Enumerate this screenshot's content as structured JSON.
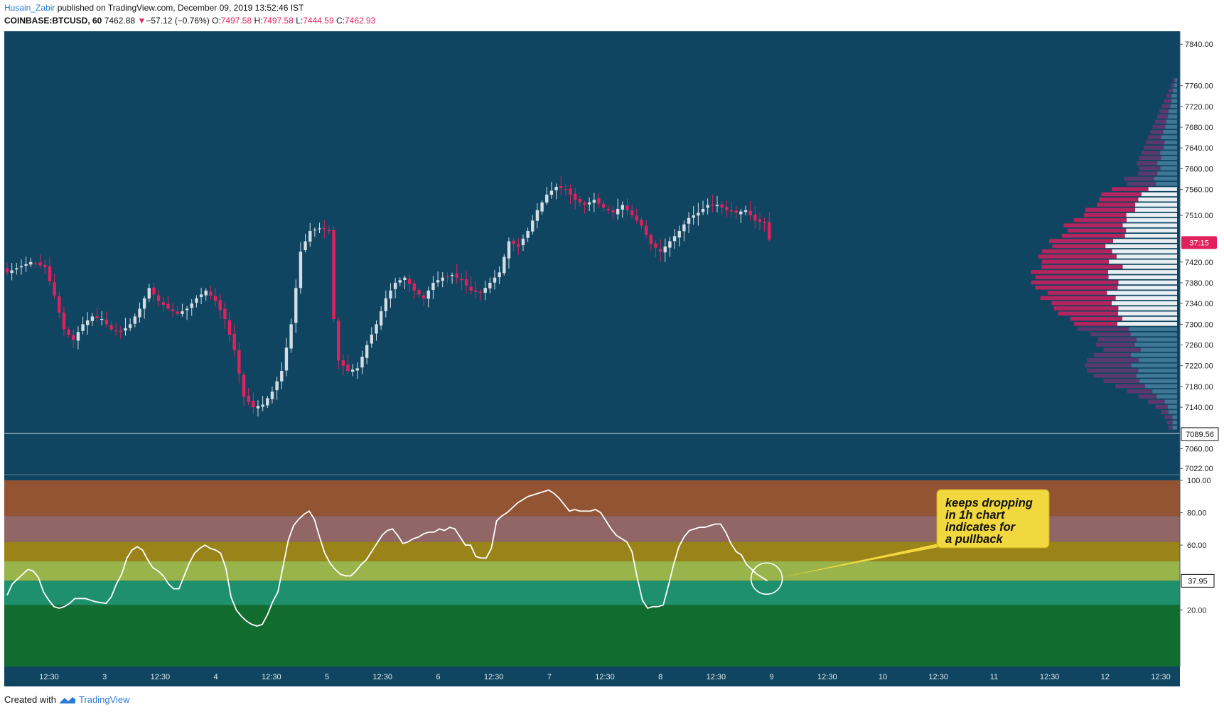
{
  "header": {
    "author": "Husain_Zabir",
    "published_text": "published on TradingView.com, December 09, 2019 13:52:46 IST",
    "symbol": "COINBASE:BTCUSD, 60",
    "last": "7462.88",
    "change_arrow": "▼",
    "change": "−57.12 (−0.76%)",
    "o_label": "O:",
    "o": "7497.58",
    "h_label": "H:",
    "h": "7497.58",
    "l_label": "L:",
    "l": "7444.59",
    "c_label": "C:",
    "c": "7462.93"
  },
  "footer": {
    "created_with": "Created with",
    "brand": "TradingView"
  },
  "colors": {
    "background": "#0f4560",
    "up_candle": "#d5dde4",
    "down_candle": "#e0215d",
    "bands": [
      "#935433",
      "#906666",
      "#9a8419",
      "#99b44a",
      "#1f906c",
      "#136c2f"
    ],
    "annotation_fill": "#f1d83e"
  },
  "chart_data": [
    {
      "type": "candlestick",
      "symbol": "COINBASE:BTCUSD",
      "interval": "60",
      "ylim": [
        7010,
        7865
      ],
      "y_ticks": [
        "7840.00",
        "7760.00",
        "7720.00",
        "7680.00",
        "7640.00",
        "7600.00",
        "7560.00",
        "7510.00",
        "7420.00",
        "7380.00",
        "7340.00",
        "7300.00",
        "7260.00",
        "7220.00",
        "7180.00",
        "7140.00",
        "7060.00",
        "7022.00"
      ],
      "x_ticks": [
        "12:30",
        "3",
        "12:30",
        "4",
        "12:30",
        "5",
        "12:30",
        "6",
        "12:30",
        "7",
        "12:30",
        "8",
        "12:30",
        "9",
        "12:30",
        "10",
        "12:30",
        "11",
        "12:30",
        "12",
        "12:30"
      ],
      "countdown_label": "37:15",
      "horizontal_line": {
        "value": 7089.56,
        "label": "7089.56"
      },
      "path_points": [
        [
          0,
          7400
        ],
        [
          5,
          7420
        ],
        [
          8,
          7410
        ],
        [
          10,
          7355
        ],
        [
          12,
          7290
        ],
        [
          14,
          7270
        ],
        [
          16,
          7300
        ],
        [
          18,
          7315
        ],
        [
          20,
          7310
        ],
        [
          22,
          7290
        ],
        [
          24,
          7285
        ],
        [
          26,
          7300
        ],
        [
          28,
          7330
        ],
        [
          30,
          7370
        ],
        [
          32,
          7345
        ],
        [
          34,
          7330
        ],
        [
          36,
          7320
        ],
        [
          38,
          7330
        ],
        [
          40,
          7350
        ],
        [
          42,
          7365
        ],
        [
          44,
          7345
        ],
        [
          46,
          7310
        ],
        [
          48,
          7250
        ],
        [
          50,
          7160
        ],
        [
          52,
          7140
        ],
        [
          54,
          7145
        ],
        [
          56,
          7170
        ],
        [
          58,
          7210
        ],
        [
          60,
          7300
        ],
        [
          62,
          7440
        ],
        [
          64,
          7480
        ],
        [
          66,
          7485
        ],
        [
          68,
          7480
        ],
        [
          69,
          7310
        ],
        [
          70,
          7230
        ],
        [
          72,
          7210
        ],
        [
          74,
          7215
        ],
        [
          76,
          7260
        ],
        [
          78,
          7300
        ],
        [
          80,
          7350
        ],
        [
          82,
          7380
        ],
        [
          84,
          7390
        ],
        [
          86,
          7365
        ],
        [
          88,
          7350
        ],
        [
          90,
          7380
        ],
        [
          92,
          7390
        ],
        [
          94,
          7395
        ],
        [
          96,
          7385
        ],
        [
          98,
          7365
        ],
        [
          100,
          7360
        ],
        [
          102,
          7380
        ],
        [
          104,
          7400
        ],
        [
          106,
          7460
        ],
        [
          108,
          7450
        ],
        [
          110,
          7480
        ],
        [
          112,
          7520
        ],
        [
          114,
          7550
        ],
        [
          116,
          7565
        ],
        [
          118,
          7560
        ],
        [
          120,
          7540
        ],
        [
          122,
          7530
        ],
        [
          124,
          7540
        ],
        [
          126,
          7525
        ],
        [
          128,
          7515
        ],
        [
          130,
          7530
        ],
        [
          132,
          7510
        ],
        [
          134,
          7490
        ],
        [
          136,
          7455
        ],
        [
          138,
          7440
        ],
        [
          140,
          7460
        ],
        [
          142,
          7480
        ],
        [
          144,
          7505
        ],
        [
          146,
          7515
        ],
        [
          148,
          7530
        ],
        [
          150,
          7530
        ],
        [
          152,
          7520
        ],
        [
          154,
          7515
        ],
        [
          156,
          7520
        ],
        [
          158,
          7500
        ],
        [
          160,
          7495
        ],
        [
          161,
          7463
        ]
      ],
      "volume_profile": {
        "value_area": [
          7300,
          7560
        ],
        "row_size": 10
      }
    },
    {
      "type": "line",
      "name": "oscillator",
      "ylim": [
        -15,
        100
      ],
      "y_ticks": [
        "100.00",
        "80.00",
        "60.00",
        "20.00"
      ],
      "last_value_label": "37.95",
      "bands": [
        100,
        78,
        62,
        50,
        38,
        23,
        -15
      ],
      "values": [
        [
          0,
          29
        ],
        [
          1,
          36
        ],
        [
          3,
          42
        ],
        [
          4,
          45
        ],
        [
          5,
          44
        ],
        [
          6,
          40
        ],
        [
          7,
          31
        ],
        [
          8,
          26
        ],
        [
          9,
          22
        ],
        [
          10,
          21
        ],
        [
          11,
          22
        ],
        [
          12,
          24
        ],
        [
          13,
          27
        ],
        [
          15,
          27
        ],
        [
          17,
          25
        ],
        [
          19,
          24
        ],
        [
          20,
          28
        ],
        [
          21,
          36
        ],
        [
          22,
          42
        ],
        [
          23,
          52
        ],
        [
          24,
          57
        ],
        [
          25,
          59
        ],
        [
          26,
          57
        ],
        [
          27,
          51
        ],
        [
          28,
          46
        ],
        [
          29,
          44
        ],
        [
          30,
          41
        ],
        [
          31,
          36
        ],
        [
          32,
          33
        ],
        [
          33,
          33
        ],
        [
          34,
          41
        ],
        [
          35,
          49
        ],
        [
          36,
          55
        ],
        [
          37,
          58
        ],
        [
          38,
          60
        ],
        [
          39,
          58
        ],
        [
          40,
          57
        ],
        [
          41,
          55
        ],
        [
          42,
          46
        ],
        [
          43,
          28
        ],
        [
          44,
          20
        ],
        [
          45,
          16
        ],
        [
          46,
          13
        ],
        [
          47,
          11
        ],
        [
          48,
          10
        ],
        [
          49,
          11
        ],
        [
          50,
          17
        ],
        [
          51,
          25
        ],
        [
          52,
          31
        ],
        [
          53,
          47
        ],
        [
          54,
          63
        ],
        [
          55,
          72
        ],
        [
          56,
          76
        ],
        [
          57,
          79
        ],
        [
          58,
          81
        ],
        [
          59,
          76
        ],
        [
          60,
          65
        ],
        [
          61,
          55
        ],
        [
          62,
          49
        ],
        [
          63,
          45
        ],
        [
          64,
          42
        ],
        [
          65,
          41
        ],
        [
          66,
          41
        ],
        [
          67,
          44
        ],
        [
          68,
          48
        ],
        [
          69,
          51
        ],
        [
          70,
          56
        ],
        [
          71,
          61
        ],
        [
          72,
          66
        ],
        [
          73,
          69
        ],
        [
          74,
          70
        ],
        [
          75,
          66
        ],
        [
          76,
          61
        ],
        [
          77,
          62
        ],
        [
          78,
          64
        ],
        [
          79,
          65
        ],
        [
          80,
          67
        ],
        [
          81,
          68
        ],
        [
          82,
          68
        ],
        [
          83,
          70
        ],
        [
          84,
          69
        ],
        [
          85,
          71
        ],
        [
          86,
          70
        ],
        [
          87,
          65
        ],
        [
          88,
          60
        ],
        [
          89,
          60
        ],
        [
          90,
          53
        ],
        [
          91,
          52
        ],
        [
          92,
          52
        ],
        [
          93,
          58
        ],
        [
          94,
          75
        ],
        [
          95,
          78
        ],
        [
          96,
          80
        ],
        [
          97,
          83
        ],
        [
          98,
          86
        ],
        [
          99,
          88
        ],
        [
          100,
          90
        ],
        [
          101,
          91
        ],
        [
          102,
          92
        ],
        [
          103,
          93
        ],
        [
          104,
          94
        ],
        [
          105,
          92
        ],
        [
          106,
          89
        ],
        [
          107,
          85
        ],
        [
          108,
          81
        ],
        [
          109,
          82
        ],
        [
          110,
          81
        ],
        [
          111,
          81
        ],
        [
          112,
          81
        ],
        [
          113,
          82
        ],
        [
          114,
          80
        ],
        [
          115,
          75
        ],
        [
          116,
          70
        ],
        [
          117,
          66
        ],
        [
          118,
          64
        ],
        [
          119,
          62
        ],
        [
          120,
          56
        ],
        [
          121,
          40
        ],
        [
          122,
          26
        ],
        [
          123,
          21
        ],
        [
          124,
          22
        ],
        [
          125,
          22
        ],
        [
          126,
          23
        ],
        [
          127,
          35
        ],
        [
          128,
          48
        ],
        [
          129,
          59
        ],
        [
          130,
          65
        ],
        [
          131,
          69
        ],
        [
          132,
          70
        ],
        [
          133,
          71
        ],
        [
          134,
          71
        ],
        [
          135,
          72
        ],
        [
          136,
          73
        ],
        [
          137,
          73
        ],
        [
          138,
          68
        ],
        [
          139,
          61
        ],
        [
          140,
          56
        ],
        [
          141,
          54
        ],
        [
          142,
          48
        ],
        [
          143,
          45
        ],
        [
          144,
          42
        ],
        [
          145,
          40
        ],
        [
          146,
          38
        ]
      ],
      "annotation": {
        "lines": [
          "keeps dropping",
          "in 1h chart",
          "indicates for",
          "a pullback"
        ]
      }
    }
  ]
}
